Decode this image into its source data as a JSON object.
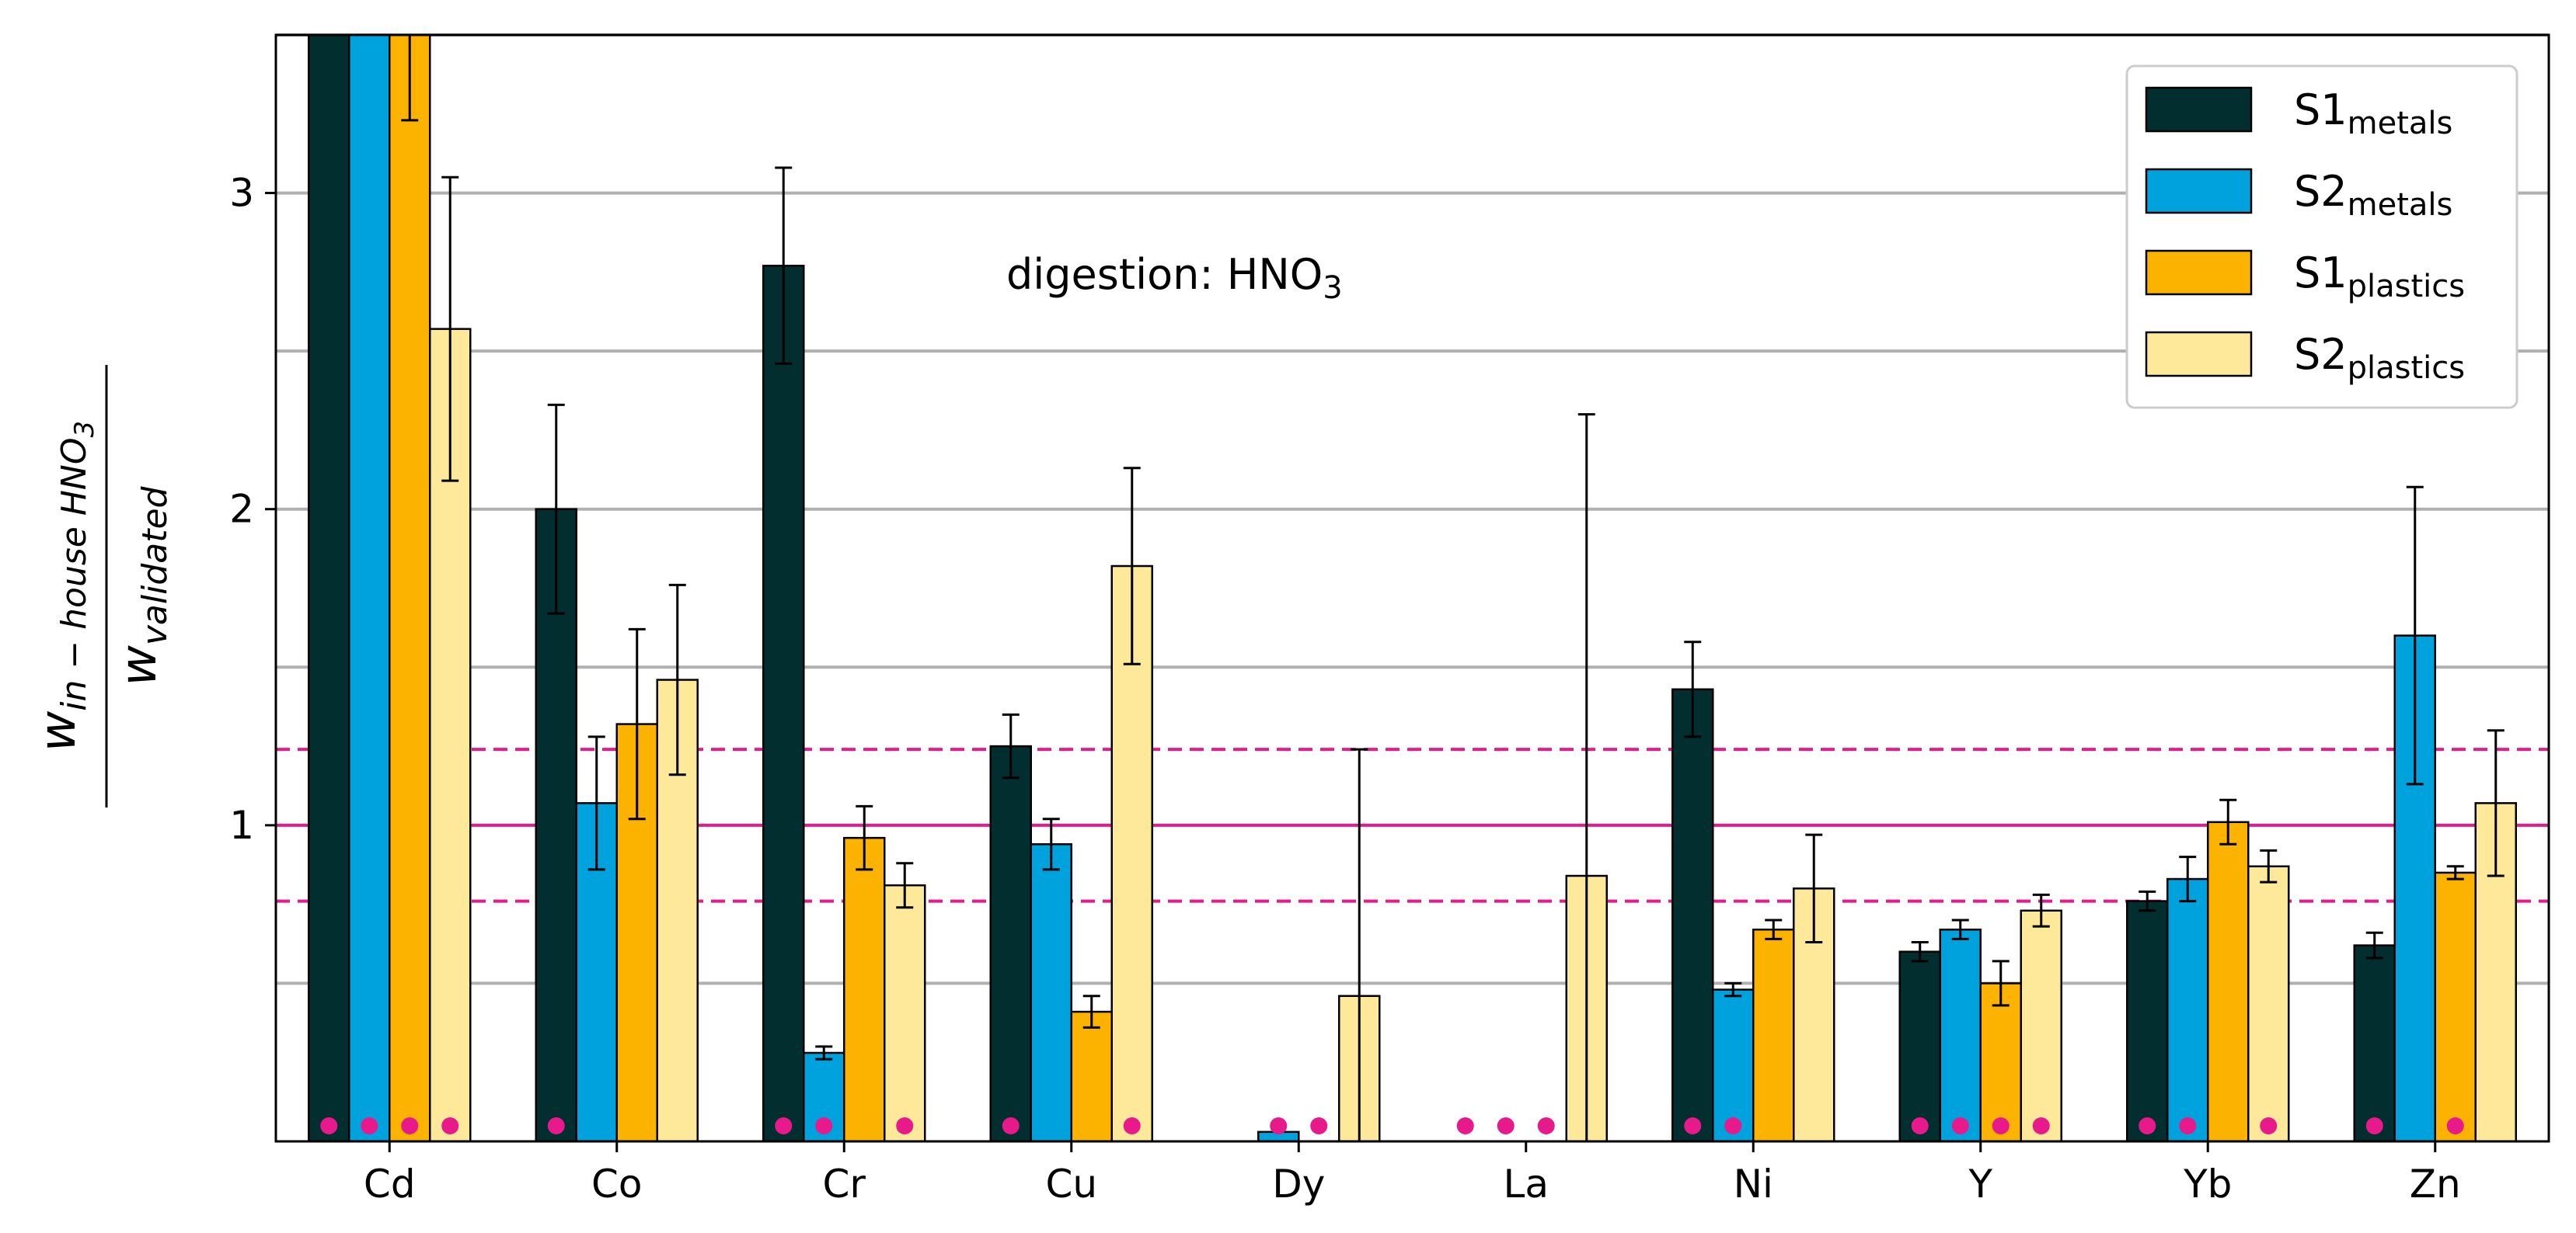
{
  "chart_data": {
    "type": "bar",
    "categories": [
      "Cd",
      "Co",
      "Cr",
      "Cu",
      "Dy",
      "La",
      "Ni",
      "Y",
      "Yb",
      "Zn"
    ],
    "ylim": [
      0,
      3.5
    ],
    "yticks": [
      "1",
      "2",
      "3"
    ],
    "ylabel_numerator_base": "w",
    "ylabel_numerator_sub": "in − house HNO",
    "ylabel_numerator_sub2": "3",
    "ylabel_denominator_base": "w",
    "ylabel_denominator_sub": "validated",
    "annotation_text": "digestion: HNO",
    "annotation_sub": "3",
    "grid": "horizontal",
    "reference_line": {
      "value": 1.0,
      "color": "#e8198b",
      "style": "solid"
    },
    "tolerance_lines": {
      "values": [
        0.76,
        1.24
      ],
      "color": "#e8198b",
      "style": "dashed"
    },
    "marker_color": "#e8198b",
    "series": [
      {
        "name": "S1",
        "sub": "metals",
        "color": "#032e2f",
        "values": [
          3.5,
          2.0,
          2.77,
          1.25,
          0,
          0,
          1.43,
          0.6,
          0.76,
          0.62
        ],
        "errors": [
          0,
          0.33,
          0.31,
          0.1,
          0,
          0,
          0.15,
          0.03,
          0.03,
          0.04
        ],
        "markers": [
          true,
          true,
          true,
          true,
          false,
          true,
          true,
          true,
          true,
          true
        ]
      },
      {
        "name": "S2",
        "sub": "metals",
        "color": "#00a2dd",
        "values": [
          3.5,
          1.07,
          0.28,
          0.94,
          0.03,
          0,
          0.48,
          0.67,
          0.83,
          1.6
        ],
        "errors": [
          0,
          0.21,
          0.02,
          0.08,
          0,
          0,
          0.02,
          0.03,
          0.07,
          0.47
        ],
        "markers": [
          true,
          false,
          true,
          false,
          true,
          true,
          true,
          true,
          true,
          false
        ]
      },
      {
        "name": "S1",
        "sub": "plastics",
        "color": "#fcb300",
        "values": [
          3.5,
          1.32,
          0.96,
          0.41,
          0,
          0,
          0.67,
          0.5,
          1.01,
          0.85
        ],
        "errors": [
          0.27,
          0.3,
          0.1,
          0.05,
          0,
          0,
          0.03,
          0.07,
          0.07,
          0.02
        ],
        "markers": [
          true,
          false,
          false,
          false,
          true,
          true,
          false,
          true,
          false,
          true
        ]
      },
      {
        "name": "S2",
        "sub": "plastics",
        "color": "#fee89a",
        "values": [
          2.57,
          1.46,
          0.81,
          1.82,
          0.46,
          0.84,
          0.8,
          0.73,
          0.87,
          1.07
        ],
        "errors": [
          0.48,
          0.3,
          0.07,
          0.31,
          0.78,
          1.46,
          0.17,
          0.05,
          0.05,
          0.23
        ],
        "markers": [
          true,
          false,
          true,
          true,
          false,
          false,
          false,
          true,
          true,
          false
        ]
      }
    ]
  }
}
